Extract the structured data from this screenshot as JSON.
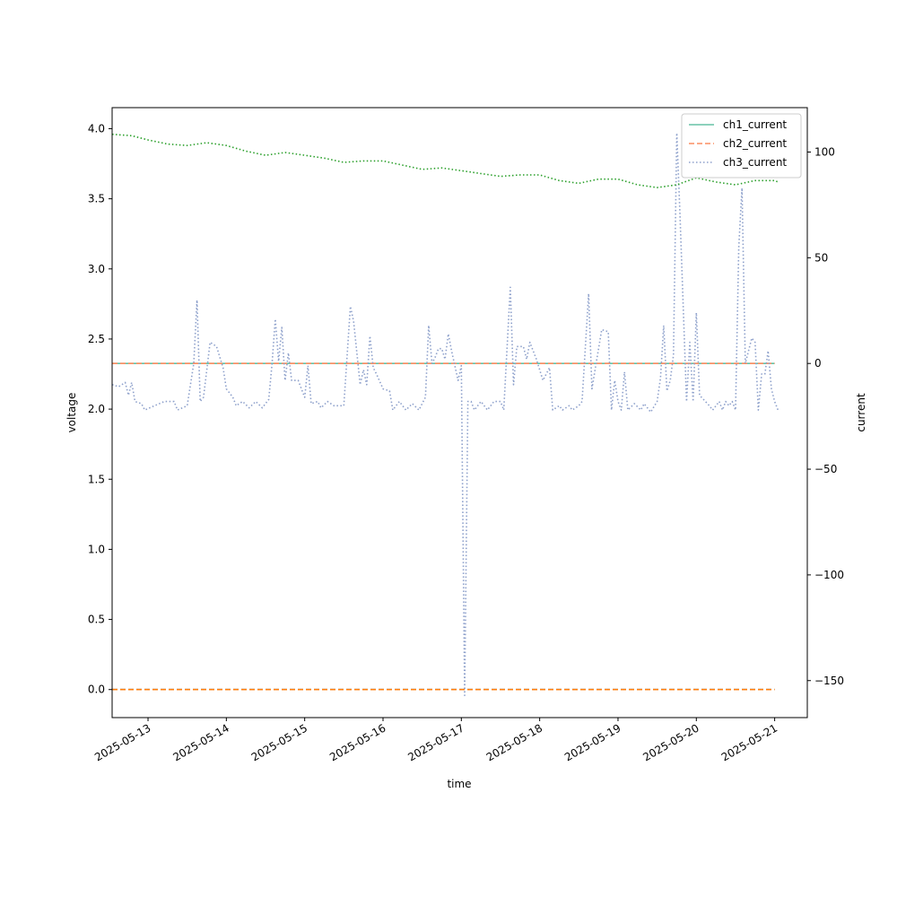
{
  "chart_data": {
    "type": "line",
    "xlabel": "time",
    "ylabel_left": "voltage",
    "ylabel_right": "current",
    "x_range": [
      "2025-05-12 13:00",
      "2025-05-21 10:00"
    ],
    "y_left_range": [
      -0.2,
      4.15
    ],
    "y_right_range": [
      -167.5,
      121
    ],
    "x_tick_labels": [
      "2025-05-13",
      "2025-05-14",
      "2025-05-15",
      "2025-05-16",
      "2025-05-17",
      "2025-05-18",
      "2025-05-19",
      "2025-05-20",
      "2025-05-21"
    ],
    "y_left_ticks": [
      "0.0",
      "0.5",
      "1.0",
      "1.5",
      "2.0",
      "2.5",
      "3.0",
      "3.5",
      "4.0"
    ],
    "y_right_ticks": [
      "−150",
      "−100",
      "−50",
      "0",
      "50",
      "100"
    ],
    "grid": false,
    "legend_position": "upper right",
    "series": [
      {
        "name": "ch1_current",
        "axis": "right",
        "color": "#66c2a5",
        "style": "solid",
        "points": [
          [
            "2025-05-12 13:00",
            0
          ],
          [
            "2025-05-21 00:00",
            0
          ]
        ]
      },
      {
        "name": "ch2_current",
        "axis": "right",
        "color": "#fc8d62",
        "style": "dashed",
        "points": [
          [
            "2025-05-12 13:00",
            0
          ],
          [
            "2025-05-21 00:00",
            0
          ]
        ]
      },
      {
        "name": "ch3_current",
        "axis": "right",
        "color": "#8da0cb",
        "style": "dotted",
        "points": [
          [
            "2025-05-12 13:00",
            -10
          ],
          [
            "2025-05-12 15:00",
            -11
          ],
          [
            "2025-05-12 17:00",
            -9
          ],
          [
            "2025-05-12 18:00",
            -15
          ],
          [
            "2025-05-12 19:00",
            -9
          ],
          [
            "2025-05-12 20:00",
            -18
          ],
          [
            "2025-05-12 22:00",
            -19
          ],
          [
            "2025-05-12 23:00",
            -22
          ],
          [
            "2025-05-13 02:00",
            -20
          ],
          [
            "2025-05-13 05:00",
            -18
          ],
          [
            "2025-05-13 08:00",
            -18
          ],
          [
            "2025-05-13 09:00",
            -22
          ],
          [
            "2025-05-13 12:00",
            -20
          ],
          [
            "2025-05-13 14:00",
            0
          ],
          [
            "2025-05-13 15:00",
            30
          ],
          [
            "2025-05-13 16:00",
            -18
          ],
          [
            "2025-05-13 17:00",
            -16
          ],
          [
            "2025-05-13 19:00",
            10
          ],
          [
            "2025-05-13 21:00",
            8
          ],
          [
            "2025-05-13 23:00",
            -2
          ],
          [
            "2025-05-14 00:00",
            -12
          ],
          [
            "2025-05-14 02:00",
            -16
          ],
          [
            "2025-05-14 03:00",
            -20
          ],
          [
            "2025-05-14 05:00",
            -18
          ],
          [
            "2025-05-14 07:00",
            -21
          ],
          [
            "2025-05-14 09:00",
            -18
          ],
          [
            "2025-05-14 11:00",
            -21
          ],
          [
            "2025-05-14 13:00",
            -17
          ],
          [
            "2025-05-14 14:00",
            0
          ],
          [
            "2025-05-14 15:00",
            21
          ],
          [
            "2025-05-14 16:00",
            1
          ],
          [
            "2025-05-14 17:00",
            17
          ],
          [
            "2025-05-14 18:00",
            -8
          ],
          [
            "2025-05-14 19:00",
            5
          ],
          [
            "2025-05-14 20:00",
            -8
          ],
          [
            "2025-05-14 22:00",
            -8
          ],
          [
            "2025-05-15 00:00",
            -16
          ],
          [
            "2025-05-15 01:00",
            -1
          ],
          [
            "2025-05-15 02:00",
            -19
          ],
          [
            "2025-05-15 04:00",
            -18
          ],
          [
            "2025-05-15 05:00",
            -21
          ],
          [
            "2025-05-15 07:00",
            -18
          ],
          [
            "2025-05-15 09:00",
            -20
          ],
          [
            "2025-05-15 10:00",
            -20
          ],
          [
            "2025-05-15 12:00",
            -20
          ],
          [
            "2025-05-15 14:00",
            27
          ],
          [
            "2025-05-15 15:00",
            20
          ],
          [
            "2025-05-15 17:00",
            -10
          ],
          [
            "2025-05-15 18:00",
            -3
          ],
          [
            "2025-05-15 19:00",
            -10
          ],
          [
            "2025-05-15 20:00",
            13
          ],
          [
            "2025-05-15 21:00",
            -2
          ],
          [
            "2025-05-15 22:00",
            -5
          ],
          [
            "2025-05-16 00:00",
            -12
          ],
          [
            "2025-05-16 02:00",
            -13
          ],
          [
            "2025-05-16 03:00",
            -22
          ],
          [
            "2025-05-16 05:00",
            -18
          ],
          [
            "2025-05-16 07:00",
            -22
          ],
          [
            "2025-05-16 09:00",
            -19
          ],
          [
            "2025-05-16 11:00",
            -22
          ],
          [
            "2025-05-16 13:00",
            -16
          ],
          [
            "2025-05-16 14:00",
            18
          ],
          [
            "2025-05-16 15:00",
            0
          ],
          [
            "2025-05-16 16:00",
            3
          ],
          [
            "2025-05-16 17:00",
            7
          ],
          [
            "2025-05-16 18:00",
            7
          ],
          [
            "2025-05-16 19:00",
            2
          ],
          [
            "2025-05-16 20:00",
            14
          ],
          [
            "2025-05-16 21:00",
            6
          ],
          [
            "2025-05-16 23:00",
            -8
          ],
          [
            "2025-05-17 00:00",
            -1
          ],
          [
            "2025-05-17 01:00",
            -157
          ],
          [
            "2025-05-17 02:00",
            -18
          ],
          [
            "2025-05-17 03:00",
            -18
          ],
          [
            "2025-05-17 04:00",
            -22
          ],
          [
            "2025-05-17 06:00",
            -18
          ],
          [
            "2025-05-17 08:00",
            -22
          ],
          [
            "2025-05-17 10:00",
            -18
          ],
          [
            "2025-05-17 12:00",
            -18
          ],
          [
            "2025-05-17 13:00",
            -22
          ],
          [
            "2025-05-17 15:00",
            36
          ],
          [
            "2025-05-17 16:00",
            -10
          ],
          [
            "2025-05-17 17:00",
            8
          ],
          [
            "2025-05-17 19:00",
            8
          ],
          [
            "2025-05-17 20:00",
            2
          ],
          [
            "2025-05-17 21:00",
            10
          ],
          [
            "2025-05-17 23:00",
            2
          ],
          [
            "2025-05-18 01:00",
            -8
          ],
          [
            "2025-05-18 03:00",
            -2
          ],
          [
            "2025-05-18 04:00",
            -22
          ],
          [
            "2025-05-18 06:00",
            -20
          ],
          [
            "2025-05-18 07:00",
            -22
          ],
          [
            "2025-05-18 09:00",
            -20
          ],
          [
            "2025-05-18 10:00",
            -22
          ],
          [
            "2025-05-18 12:00",
            -20
          ],
          [
            "2025-05-18 13:00",
            -18
          ],
          [
            "2025-05-18 15:00",
            33
          ],
          [
            "2025-05-18 16:00",
            -12
          ],
          [
            "2025-05-18 19:00",
            16
          ],
          [
            "2025-05-18 21:00",
            15
          ],
          [
            "2025-05-18 22:00",
            -22
          ],
          [
            "2025-05-18 23:00",
            -8
          ],
          [
            "2025-05-19 00:00",
            -18
          ],
          [
            "2025-05-19 01:00",
            -22
          ],
          [
            "2025-05-19 02:00",
            -4
          ],
          [
            "2025-05-19 03:00",
            -22
          ],
          [
            "2025-05-19 05:00",
            -19
          ],
          [
            "2025-05-19 07:00",
            -22
          ],
          [
            "2025-05-19 08:00",
            -19
          ],
          [
            "2025-05-19 10:00",
            -23
          ],
          [
            "2025-05-19 12:00",
            -18
          ],
          [
            "2025-05-19 13:00",
            -7
          ],
          [
            "2025-05-19 14:00",
            18
          ],
          [
            "2025-05-19 15:00",
            -13
          ],
          [
            "2025-05-19 16:00",
            -8
          ],
          [
            "2025-05-19 17:00",
            4
          ],
          [
            "2025-05-19 18:00",
            109
          ],
          [
            "2025-05-19 19:00",
            70
          ],
          [
            "2025-05-19 21:00",
            -18
          ],
          [
            "2025-05-19 22:00",
            10
          ],
          [
            "2025-05-19 23:00",
            -18
          ],
          [
            "2025-05-20 00:00",
            24
          ],
          [
            "2025-05-20 01:00",
            -15
          ],
          [
            "2025-05-20 04:00",
            -20
          ],
          [
            "2025-05-20 05:00",
            -22
          ],
          [
            "2025-05-20 07:00",
            -18
          ],
          [
            "2025-05-20 08:00",
            -22
          ],
          [
            "2025-05-20 09:00",
            -18
          ],
          [
            "2025-05-20 10:00",
            -20
          ],
          [
            "2025-05-20 11:00",
            -18
          ],
          [
            "2025-05-20 12:00",
            -22
          ],
          [
            "2025-05-20 13:00",
            55
          ],
          [
            "2025-05-20 14:00",
            83
          ],
          [
            "2025-05-20 15:00",
            0
          ],
          [
            "2025-05-20 17:00",
            12
          ],
          [
            "2025-05-20 18:00",
            10
          ],
          [
            "2025-05-20 19:00",
            -22
          ],
          [
            "2025-05-20 20:00",
            -5
          ],
          [
            "2025-05-20 21:00",
            -5
          ],
          [
            "2025-05-20 22:00",
            6
          ],
          [
            "2025-05-20 23:00",
            -12
          ],
          [
            "2025-05-21 00:00",
            -18
          ],
          [
            "2025-05-21 01:00",
            -22
          ]
        ]
      },
      {
        "name": "",
        "axis": "left",
        "color": "#2ca02c",
        "style": "dotted",
        "points": [
          [
            "2025-05-12 13:00",
            3.96
          ],
          [
            "2025-05-12 19:00",
            3.95
          ],
          [
            "2025-05-13 00:00",
            3.92
          ],
          [
            "2025-05-13 06:00",
            3.89
          ],
          [
            "2025-05-13 12:00",
            3.88
          ],
          [
            "2025-05-13 18:00",
            3.9
          ],
          [
            "2025-05-14 00:00",
            3.88
          ],
          [
            "2025-05-14 06:00",
            3.84
          ],
          [
            "2025-05-14 12:00",
            3.81
          ],
          [
            "2025-05-14 18:00",
            3.83
          ],
          [
            "2025-05-15 00:00",
            3.81
          ],
          [
            "2025-05-15 06:00",
            3.79
          ],
          [
            "2025-05-15 12:00",
            3.76
          ],
          [
            "2025-05-15 18:00",
            3.77
          ],
          [
            "2025-05-16 00:00",
            3.77
          ],
          [
            "2025-05-16 06:00",
            3.74
          ],
          [
            "2025-05-16 12:00",
            3.71
          ],
          [
            "2025-05-16 18:00",
            3.72
          ],
          [
            "2025-05-17 00:00",
            3.7
          ],
          [
            "2025-05-17 06:00",
            3.68
          ],
          [
            "2025-05-17 12:00",
            3.66
          ],
          [
            "2025-05-17 18:00",
            3.67
          ],
          [
            "2025-05-18 00:00",
            3.67
          ],
          [
            "2025-05-18 06:00",
            3.63
          ],
          [
            "2025-05-18 12:00",
            3.61
          ],
          [
            "2025-05-18 18:00",
            3.64
          ],
          [
            "2025-05-19 00:00",
            3.64
          ],
          [
            "2025-05-19 06:00",
            3.6
          ],
          [
            "2025-05-19 12:00",
            3.58
          ],
          [
            "2025-05-19 18:00",
            3.6
          ],
          [
            "2025-05-20 00:00",
            3.65
          ],
          [
            "2025-05-20 06:00",
            3.62
          ],
          [
            "2025-05-20 12:00",
            3.6
          ],
          [
            "2025-05-20 18:00",
            3.63
          ],
          [
            "2025-05-21 00:00",
            3.63
          ],
          [
            "2025-05-21 01:00",
            3.62
          ]
        ]
      },
      {
        "name": "",
        "axis": "left",
        "color": "#1f77b4",
        "style": "dashed",
        "points": [
          [
            "2025-05-12 13:00",
            0
          ],
          [
            "2025-05-21 00:00",
            0
          ]
        ]
      },
      {
        "name": "",
        "axis": "left",
        "color": "#ff7f0e",
        "style": "dashed",
        "points": [
          [
            "2025-05-12 13:00",
            0
          ],
          [
            "2025-05-21 00:00",
            0
          ]
        ]
      }
    ]
  }
}
